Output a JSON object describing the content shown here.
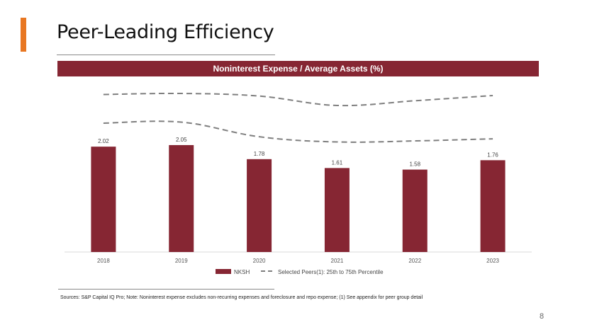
{
  "page": {
    "title": "Peer-Leading Efficiency",
    "footnote": "Sources: S&P Capital IQ Pro;  Note: Noninterest expense excludes non-recurring expenses and foreclosure and repo expense; (1) See appendix for peer group detail",
    "page_number": "8"
  },
  "colors": {
    "accent": "#E87722",
    "brand": "#862633",
    "peer_line": "#7F7F7F"
  },
  "chart_data": {
    "type": "bar",
    "title": "Noninterest Expense / Average Assets (%)",
    "categories": [
      "2018",
      "2019",
      "2020",
      "2021",
      "2022",
      "2023"
    ],
    "series": [
      {
        "name": "NKSH",
        "kind": "bar",
        "values": [
          2.02,
          2.05,
          1.78,
          1.61,
          1.58,
          1.76
        ],
        "labels": [
          "2.02",
          "2.05",
          "1.78",
          "1.61",
          "1.58",
          "1.76"
        ]
      },
      {
        "name": "Selected Peers(1): 25th to 75th Percentile",
        "kind": "dashed-line-pair",
        "p25": [
          2.47,
          2.49,
          2.21,
          2.11,
          2.13,
          2.17
        ],
        "p75": [
          3.02,
          3.04,
          2.99,
          2.81,
          2.9,
          3.0
        ]
      }
    ],
    "ylim": [
      0,
      3.8
    ],
    "xlabel": "",
    "ylabel": "",
    "legend": {
      "position": "bottom",
      "entries": [
        "NKSH",
        "Selected Peers(1): 25th to 75th Percentile"
      ]
    }
  }
}
